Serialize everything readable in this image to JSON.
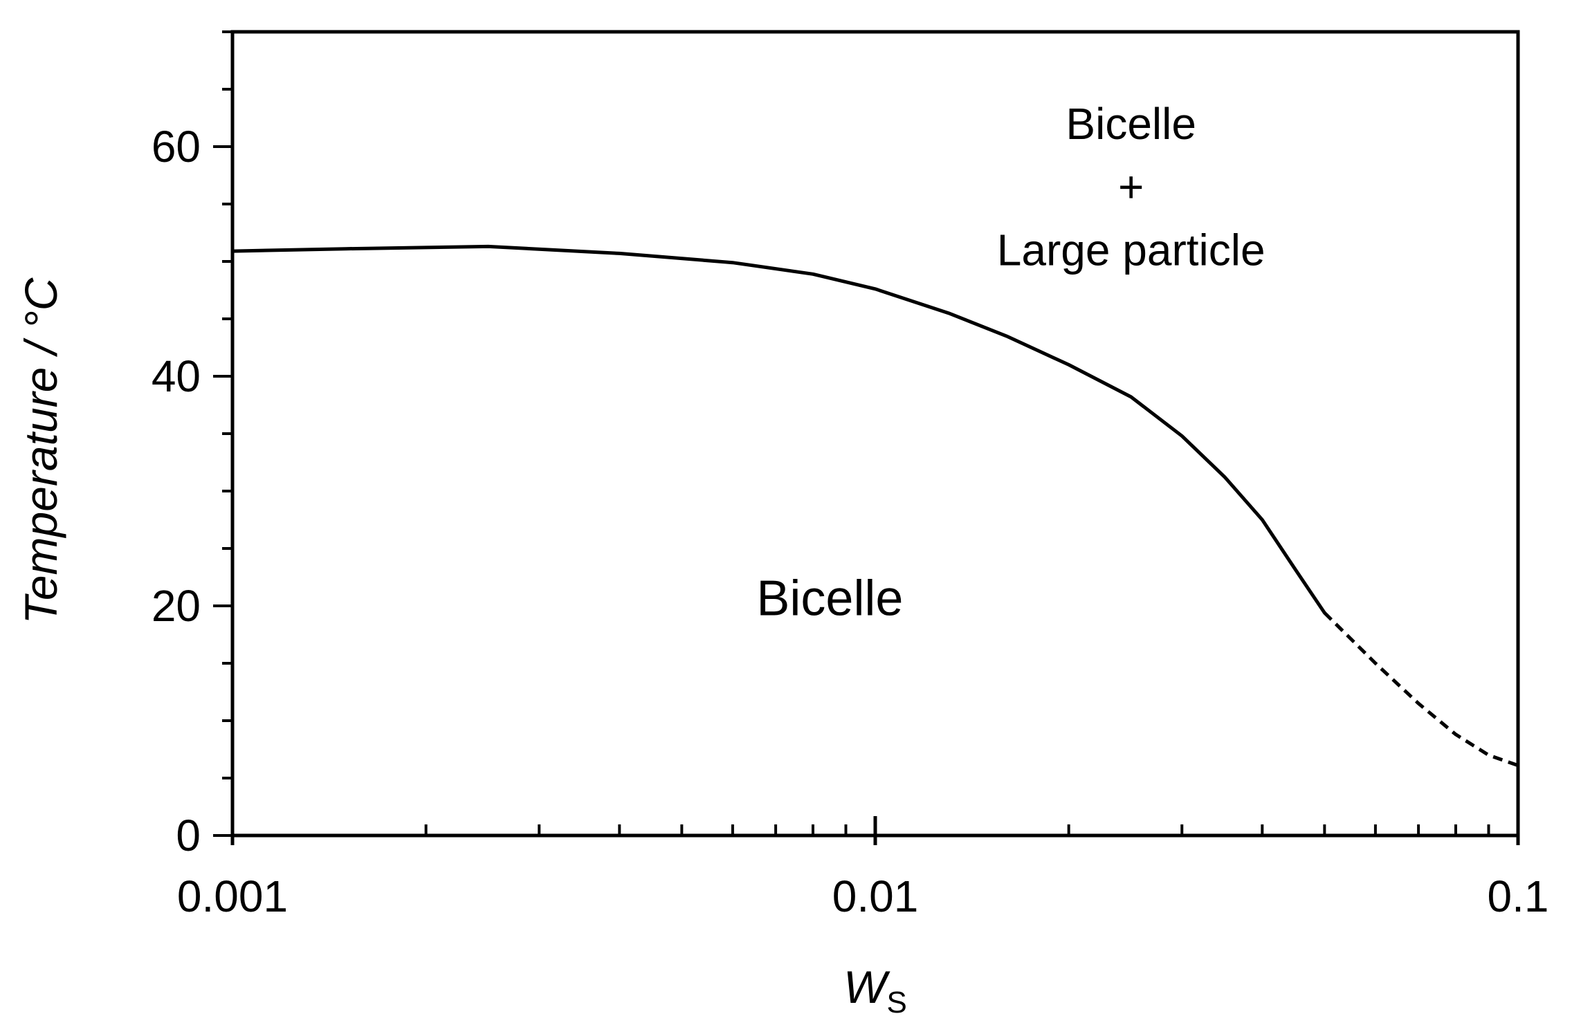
{
  "chart_data": {
    "type": "line",
    "xlabel_main": "W",
    "xlabel_sub": "S",
    "ylabel": "Temperature / °C",
    "xscale": "log",
    "xlim": [
      0.001,
      0.1
    ],
    "ylim": [
      0,
      70
    ],
    "x_ticks": [
      {
        "value": 0.001,
        "label": "0.001"
      },
      {
        "value": 0.01,
        "label": "0.01"
      },
      {
        "value": 0.1,
        "label": "0.1"
      }
    ],
    "y_ticks": [
      {
        "value": 0,
        "label": "0"
      },
      {
        "value": 20,
        "label": "20"
      },
      {
        "value": 40,
        "label": "40"
      },
      {
        "value": 60,
        "label": "60"
      }
    ],
    "y_minor_step": 5,
    "grid": false,
    "series": [
      {
        "style": "solid",
        "color": "#000000",
        "points": [
          [
            0.001,
            50.9
          ],
          [
            0.0015,
            51.1
          ],
          [
            0.0025,
            51.3
          ],
          [
            0.004,
            50.7
          ],
          [
            0.006,
            49.9
          ],
          [
            0.008,
            48.9
          ],
          [
            0.01,
            47.6
          ],
          [
            0.013,
            45.5
          ],
          [
            0.016,
            43.5
          ],
          [
            0.02,
            41.0
          ],
          [
            0.025,
            38.2
          ],
          [
            0.03,
            34.8
          ],
          [
            0.035,
            31.2
          ],
          [
            0.04,
            27.5
          ],
          [
            0.045,
            23.2
          ],
          [
            0.05,
            19.4
          ]
        ]
      },
      {
        "style": "dashed",
        "color": "#000000",
        "points": [
          [
            0.05,
            19.4
          ],
          [
            0.06,
            15.0
          ],
          [
            0.07,
            11.5
          ],
          [
            0.08,
            8.8
          ],
          [
            0.09,
            7.0
          ],
          [
            0.1,
            6.1
          ]
        ]
      }
    ],
    "annotations": [
      {
        "id": "two-phase-line1",
        "text": "Bicelle",
        "x": 0.025,
        "y": 62
      },
      {
        "id": "two-phase-line2",
        "text": "+",
        "x": 0.025,
        "y": 56.5
      },
      {
        "id": "two-phase-line3",
        "text": "Large particle",
        "x": 0.025,
        "y": 51
      },
      {
        "id": "single-phase",
        "text": "Bicelle",
        "x": 0.0085,
        "y": 20.5
      }
    ]
  }
}
